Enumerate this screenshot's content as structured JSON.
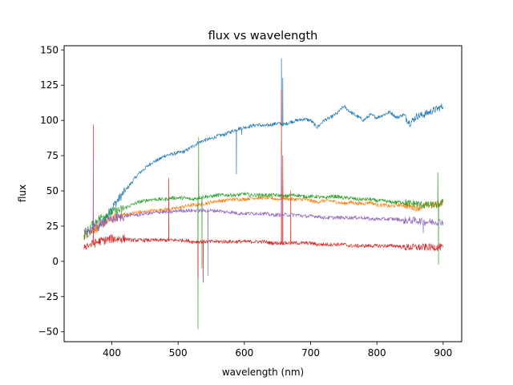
{
  "chart_data": {
    "type": "line",
    "title": "flux vs wavelength",
    "xlabel": "wavelength (nm)",
    "ylabel": "flux",
    "xlim": [
      328,
      928
    ],
    "ylim": [
      -57,
      153
    ],
    "xticks": [
      400,
      500,
      600,
      700,
      800,
      900
    ],
    "yticks": [
      -50,
      -25,
      0,
      25,
      50,
      75,
      100,
      125,
      150
    ],
    "grid": false,
    "legend": "none",
    "series": [
      {
        "color": "#1f77b4",
        "points": [
          [
            358,
            17
          ],
          [
            370,
            22
          ],
          [
            380,
            24
          ],
          [
            390,
            30
          ],
          [
            400,
            38
          ],
          [
            410,
            44
          ],
          [
            420,
            50
          ],
          [
            430,
            56
          ],
          [
            440,
            62
          ],
          [
            450,
            66
          ],
          [
            460,
            70
          ],
          [
            470,
            72
          ],
          [
            480,
            75
          ],
          [
            490,
            76
          ],
          [
            500,
            77
          ],
          [
            510,
            78
          ],
          [
            520,
            81
          ],
          [
            530,
            84
          ],
          [
            540,
            86
          ],
          [
            550,
            87
          ],
          [
            560,
            89
          ],
          [
            570,
            90
          ],
          [
            580,
            92
          ],
          [
            590,
            94
          ],
          [
            600,
            95
          ],
          [
            610,
            96
          ],
          [
            620,
            97
          ],
          [
            630,
            96
          ],
          [
            640,
            97
          ],
          [
            650,
            98
          ],
          [
            660,
            97
          ],
          [
            670,
            99
          ],
          [
            680,
            100
          ],
          [
            690,
            101
          ],
          [
            700,
            100
          ],
          [
            710,
            95
          ],
          [
            720,
            100
          ],
          [
            730,
            102
          ],
          [
            740,
            105
          ],
          [
            750,
            110
          ],
          [
            760,
            106
          ],
          [
            770,
            103
          ],
          [
            780,
            100
          ],
          [
            790,
            104
          ],
          [
            800,
            102
          ],
          [
            810,
            104
          ],
          [
            820,
            106
          ],
          [
            830,
            102
          ],
          [
            840,
            104
          ],
          [
            850,
            98
          ],
          [
            860,
            103
          ],
          [
            870,
            104
          ],
          [
            880,
            106
          ],
          [
            890,
            108
          ],
          [
            900,
            110
          ]
        ],
        "spikes": [
          [
            588,
            62
          ],
          [
            656,
            144
          ],
          [
            658,
            130
          ],
          [
            596,
            90
          ]
        ]
      },
      {
        "color": "#ff7f0e",
        "points": [
          [
            358,
            18
          ],
          [
            370,
            22
          ],
          [
            380,
            24
          ],
          [
            390,
            28
          ],
          [
            400,
            30
          ],
          [
            410,
            32
          ],
          [
            420,
            33
          ],
          [
            430,
            34
          ],
          [
            440,
            35
          ],
          [
            450,
            35
          ],
          [
            460,
            36
          ],
          [
            470,
            36
          ],
          [
            480,
            37
          ],
          [
            490,
            37
          ],
          [
            500,
            38
          ],
          [
            510,
            39
          ],
          [
            520,
            40
          ],
          [
            530,
            40
          ],
          [
            540,
            41
          ],
          [
            550,
            42
          ],
          [
            560,
            43
          ],
          [
            570,
            43
          ],
          [
            580,
            44
          ],
          [
            590,
            44
          ],
          [
            600,
            44
          ],
          [
            610,
            45
          ],
          [
            620,
            45
          ],
          [
            630,
            45
          ],
          [
            640,
            45
          ],
          [
            650,
            44
          ],
          [
            660,
            45
          ],
          [
            670,
            44
          ],
          [
            680,
            44
          ],
          [
            690,
            44
          ],
          [
            700,
            43
          ],
          [
            710,
            42
          ],
          [
            720,
            43
          ],
          [
            730,
            43
          ],
          [
            740,
            42
          ],
          [
            750,
            41
          ],
          [
            760,
            42
          ],
          [
            770,
            41
          ],
          [
            780,
            41
          ],
          [
            790,
            42
          ],
          [
            800,
            40
          ],
          [
            810,
            40
          ],
          [
            820,
            39
          ],
          [
            830,
            40
          ],
          [
            840,
            40
          ],
          [
            850,
            39
          ],
          [
            860,
            38
          ],
          [
            870,
            39
          ],
          [
            880,
            40
          ],
          [
            890,
            40
          ],
          [
            900,
            42
          ]
        ],
        "spikes": [
          [
            486,
            48
          ],
          [
            656,
            65
          ],
          [
            658,
            58
          ]
        ]
      },
      {
        "color": "#2ca02c",
        "points": [
          [
            358,
            18
          ],
          [
            370,
            26
          ],
          [
            380,
            30
          ],
          [
            390,
            33
          ],
          [
            400,
            35
          ],
          [
            410,
            36
          ],
          [
            420,
            38
          ],
          [
            430,
            40
          ],
          [
            440,
            42
          ],
          [
            450,
            43
          ],
          [
            460,
            44
          ],
          [
            470,
            44
          ],
          [
            480,
            44
          ],
          [
            490,
            45
          ],
          [
            500,
            45
          ],
          [
            510,
            45
          ],
          [
            520,
            44
          ],
          [
            530,
            45
          ],
          [
            540,
            46
          ],
          [
            550,
            46
          ],
          [
            560,
            47
          ],
          [
            570,
            47
          ],
          [
            580,
            47
          ],
          [
            590,
            47
          ],
          [
            600,
            48
          ],
          [
            610,
            47
          ],
          [
            620,
            47
          ],
          [
            630,
            47
          ],
          [
            640,
            47
          ],
          [
            650,
            47
          ],
          [
            660,
            46
          ],
          [
            670,
            47
          ],
          [
            680,
            47
          ],
          [
            690,
            46
          ],
          [
            700,
            46
          ],
          [
            710,
            46
          ],
          [
            720,
            45
          ],
          [
            730,
            46
          ],
          [
            740,
            46
          ],
          [
            750,
            45
          ],
          [
            760,
            45
          ],
          [
            770,
            44
          ],
          [
            780,
            44
          ],
          [
            790,
            44
          ],
          [
            800,
            43
          ],
          [
            810,
            43
          ],
          [
            820,
            42
          ],
          [
            830,
            42
          ],
          [
            840,
            42
          ],
          [
            850,
            41
          ],
          [
            860,
            41
          ],
          [
            870,
            40
          ],
          [
            880,
            40
          ],
          [
            890,
            40
          ],
          [
            900,
            42
          ]
        ],
        "spikes": [
          [
            530,
            -48
          ],
          [
            531,
            88
          ],
          [
            536,
            -5
          ],
          [
            656,
            85
          ],
          [
            892,
            63
          ],
          [
            893,
            -2
          ]
        ]
      },
      {
        "color": "#d62728",
        "points": [
          [
            358,
            11
          ],
          [
            370,
            12
          ],
          [
            380,
            14
          ],
          [
            390,
            15
          ],
          [
            400,
            16
          ],
          [
            410,
            16
          ],
          [
            420,
            16
          ],
          [
            430,
            15
          ],
          [
            440,
            15
          ],
          [
            450,
            15
          ],
          [
            460,
            15
          ],
          [
            470,
            15
          ],
          [
            480,
            15
          ],
          [
            490,
            15
          ],
          [
            500,
            15
          ],
          [
            510,
            15
          ],
          [
            520,
            14
          ],
          [
            530,
            14
          ],
          [
            540,
            14
          ],
          [
            550,
            14
          ],
          [
            560,
            14
          ],
          [
            570,
            14
          ],
          [
            580,
            14
          ],
          [
            590,
            14
          ],
          [
            600,
            14
          ],
          [
            610,
            14
          ],
          [
            620,
            14
          ],
          [
            630,
            14
          ],
          [
            640,
            13
          ],
          [
            650,
            13
          ],
          [
            660,
            13
          ],
          [
            670,
            13
          ],
          [
            680,
            13
          ],
          [
            690,
            13
          ],
          [
            700,
            13
          ],
          [
            710,
            12
          ],
          [
            720,
            12
          ],
          [
            730,
            12
          ],
          [
            740,
            12
          ],
          [
            750,
            12
          ],
          [
            760,
            11
          ],
          [
            770,
            11
          ],
          [
            780,
            11
          ],
          [
            790,
            11
          ],
          [
            800,
            11
          ],
          [
            810,
            11
          ],
          [
            820,
            11
          ],
          [
            830,
            11
          ],
          [
            840,
            10
          ],
          [
            850,
            10
          ],
          [
            860,
            10
          ],
          [
            870,
            10
          ],
          [
            880,
            10
          ],
          [
            890,
            10
          ],
          [
            900,
            10
          ]
        ],
        "spikes": [
          [
            372,
            97
          ],
          [
            486,
            59
          ],
          [
            530,
            -12
          ],
          [
            538,
            -15
          ],
          [
            656,
            122
          ],
          [
            658,
            75
          ],
          [
            670,
            50
          ]
        ]
      },
      {
        "color": "#9467bd",
        "points": [
          [
            358,
            20
          ],
          [
            370,
            24
          ],
          [
            380,
            26
          ],
          [
            390,
            28
          ],
          [
            400,
            30
          ],
          [
            410,
            31
          ],
          [
            420,
            32
          ],
          [
            430,
            33
          ],
          [
            440,
            33
          ],
          [
            450,
            34
          ],
          [
            460,
            34
          ],
          [
            470,
            35
          ],
          [
            480,
            35
          ],
          [
            490,
            35
          ],
          [
            500,
            36
          ],
          [
            510,
            36
          ],
          [
            520,
            36
          ],
          [
            530,
            36
          ],
          [
            540,
            36
          ],
          [
            550,
            36
          ],
          [
            560,
            36
          ],
          [
            570,
            35
          ],
          [
            580,
            35
          ],
          [
            590,
            34
          ],
          [
            600,
            34
          ],
          [
            610,
            34
          ],
          [
            620,
            34
          ],
          [
            630,
            34
          ],
          [
            640,
            33
          ],
          [
            650,
            33
          ],
          [
            660,
            33
          ],
          [
            670,
            33
          ],
          [
            680,
            33
          ],
          [
            690,
            32
          ],
          [
            700,
            32
          ],
          [
            710,
            32
          ],
          [
            720,
            31
          ],
          [
            730,
            31
          ],
          [
            740,
            31
          ],
          [
            750,
            31
          ],
          [
            760,
            31
          ],
          [
            770,
            31
          ],
          [
            780,
            31
          ],
          [
            790,
            30
          ],
          [
            800,
            30
          ],
          [
            810,
            30
          ],
          [
            820,
            30
          ],
          [
            830,
            30
          ],
          [
            840,
            29
          ],
          [
            850,
            29
          ],
          [
            860,
            29
          ],
          [
            870,
            28
          ],
          [
            880,
            28
          ],
          [
            890,
            28
          ],
          [
            900,
            28
          ]
        ],
        "spikes": [
          [
            372,
            72
          ],
          [
            545,
            -10
          ],
          [
            656,
            75
          ],
          [
            870,
            20
          ]
        ]
      }
    ]
  }
}
